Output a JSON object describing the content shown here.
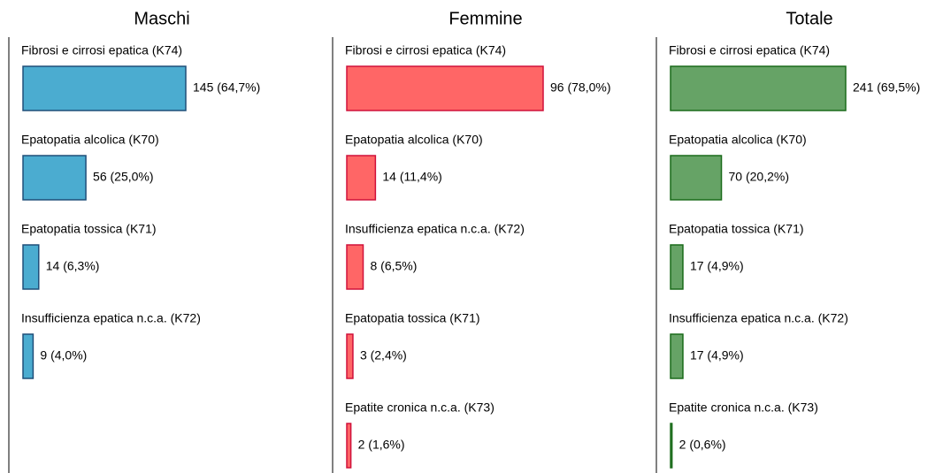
{
  "chart_data": [
    {
      "type": "bar",
      "title": "Maschi",
      "categories": [
        "Fibrosi e cirrosi epatica (K74)",
        "Epatopatia alcolica (K70)",
        "Epatopatia tossica (K71)",
        "Insufficienza epatica n.c.a. (K72)"
      ],
      "values": [
        145,
        56,
        14,
        9
      ],
      "value_labels": [
        "145 (64,7%)",
        "56 (25,0%)",
        "14 (6,3%)",
        "9 (4,0%)"
      ],
      "color": "#4bacd0",
      "edge_color": "#1f4e79"
    },
    {
      "type": "bar",
      "title": "Femmine",
      "categories": [
        "Fibrosi e cirrosi epatica (K74)",
        "Epatopatia alcolica (K70)",
        "Insufficienza epatica n.c.a. (K72)",
        "Epatopatia tossica (K71)",
        "Epatite cronica n.c.a. (K73)"
      ],
      "values": [
        96,
        14,
        8,
        3,
        2
      ],
      "value_labels": [
        "96 (78,0%)",
        "14 (11,4%)",
        "8 (6,5%)",
        "3 (2,4%)",
        "2 (1,6%)"
      ],
      "color": "#ff6666",
      "edge_color": "#d0103a"
    },
    {
      "type": "bar",
      "title": "Totale",
      "categories": [
        "Fibrosi e cirrosi epatica (K74)",
        "Epatopatia alcolica (K70)",
        "Epatopatia tossica (K71)",
        "Insufficienza epatica n.c.a. (K72)",
        "Epatite cronica n.c.a. (K73)"
      ],
      "values": [
        241,
        70,
        17,
        17,
        2
      ],
      "value_labels": [
        "241 (69,5%)",
        "70 (20,2%)",
        "17 (4,9%)",
        "17 (4,9%)",
        "2 (0,6%)"
      ],
      "color": "#66a366",
      "edge_color": "#1a6b1a"
    }
  ]
}
